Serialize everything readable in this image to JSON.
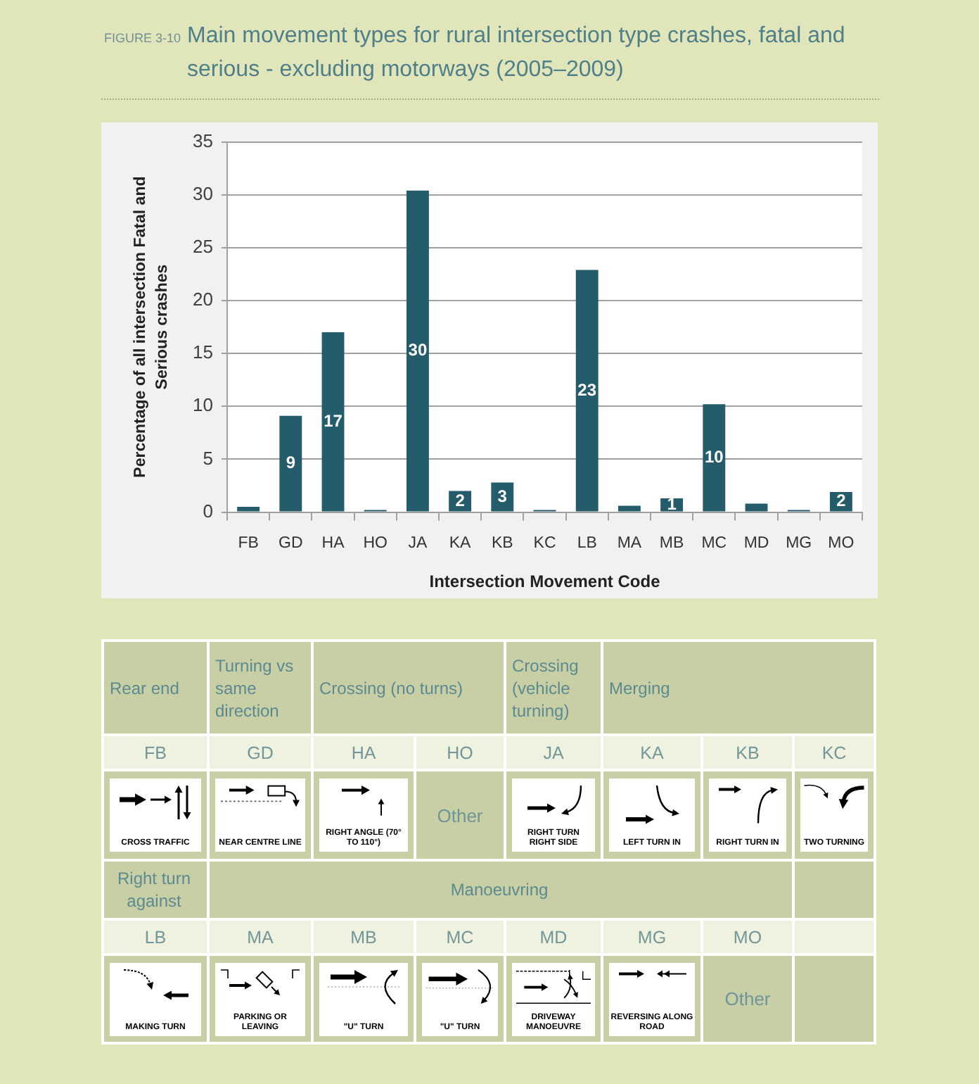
{
  "chart_data": [
    {
      "type": "bar",
      "title": "Main movement types for rural intersection type crashes, fatal and serious - excluding motorways (2005–2009)",
      "annotations": [
        "FIGURE 3-10"
      ],
      "xlabel": "Intersection Movement Code",
      "ylabel": "Percentage of all intersection Fatal and Serious crashes",
      "categories": [
        "FB",
        "GD",
        "HA",
        "HO",
        "JA",
        "KA",
        "KB",
        "KC",
        "LB",
        "MA",
        "MB",
        "MC",
        "MD",
        "MG",
        "MO"
      ],
      "values": [
        0.5,
        9.1,
        17,
        0.2,
        30.4,
        2,
        2.8,
        0.2,
        22.9,
        0.6,
        1.3,
        10.2,
        0.8,
        0.2,
        1.9
      ],
      "value_labels": [
        null,
        "9",
        "17",
        null,
        "30",
        "2",
        "3",
        null,
        "23",
        null,
        "1",
        "10",
        null,
        null,
        "2"
      ],
      "color": "#245c6b",
      "ylim": [
        0,
        35
      ],
      "yticks": [
        0,
        5,
        10,
        15,
        20,
        25,
        30,
        35
      ],
      "grid": "y"
    },
    {
      "type": "other",
      "categories": [
        "FB",
        "GD",
        "HA",
        "HO",
        "JA",
        "KA",
        "KB",
        "KC",
        "LB",
        "MA",
        "MB",
        "MC",
        "MD",
        "MG",
        "MO"
      ],
      "annotations": [
        "Rear end",
        "Turning vs same direction",
        "Crossing (no turns)",
        "Crossing (vehicle turning)",
        "Merging",
        "CROSS TRAFFIC",
        "NEAR CENTRE LINE",
        "RIGHT ANGLE (70° TO 110°)",
        "Other",
        "RIGHT TURN RIGHT SIDE",
        "LEFT TURN IN",
        "RIGHT TURN IN",
        "TWO TURNING",
        "Right turn against",
        "Manoeuvring",
        "MAKING TURN",
        "PARKING OR LEAVING",
        "\"U\" TURN",
        "\"U\" TURN",
        "DRIVEWAY MANOEUVRE",
        "REVERSING ALONG ROAD",
        "Other"
      ]
    }
  ]
}
